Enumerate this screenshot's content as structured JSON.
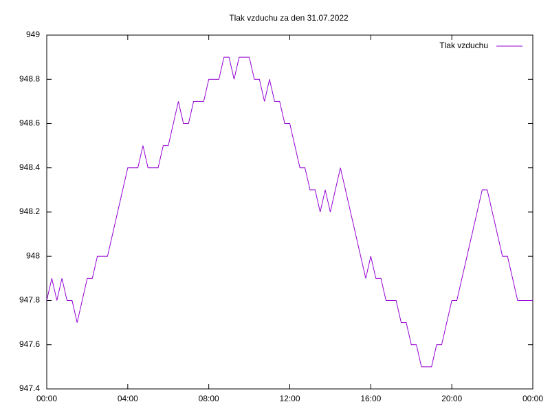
{
  "chart_data": {
    "type": "line",
    "title": "Tlak vzduchu za den 31.07.2022",
    "legend": "top-right",
    "xlim": [
      0,
      24
    ],
    "xticks": [
      {
        "value": 0,
        "label": "00:00"
      },
      {
        "value": 4,
        "label": "04:00"
      },
      {
        "value": 8,
        "label": "08:00"
      },
      {
        "value": 12,
        "label": "12:00"
      },
      {
        "value": 16,
        "label": "16:00"
      },
      {
        "value": 20,
        "label": "20:00"
      },
      {
        "value": 24,
        "label": "00:00"
      }
    ],
    "ylim": [
      947.4,
      949
    ],
    "yticks": [
      947.4,
      947.6,
      947.8,
      948,
      948.2,
      948.4,
      948.6,
      948.8,
      949
    ],
    "x": [
      0,
      0.25,
      0.5,
      0.75,
      1,
      1.25,
      1.5,
      1.75,
      2,
      2.25,
      2.5,
      2.75,
      3,
      3.25,
      3.5,
      3.75,
      4,
      4.25,
      4.5,
      4.75,
      5,
      5.25,
      5.5,
      5.75,
      6,
      6.25,
      6.5,
      6.75,
      7,
      7.25,
      7.5,
      7.75,
      8,
      8.25,
      8.5,
      8.75,
      9,
      9.25,
      9.5,
      9.75,
      10,
      10.25,
      10.5,
      10.75,
      11,
      11.25,
      11.5,
      11.75,
      12,
      12.25,
      12.5,
      12.75,
      13,
      13.25,
      13.5,
      13.75,
      14,
      14.25,
      14.5,
      14.75,
      15,
      15.25,
      15.5,
      15.75,
      16,
      16.25,
      16.5,
      16.75,
      17,
      17.25,
      17.5,
      17.75,
      18,
      18.25,
      18.5,
      18.75,
      19,
      19.25,
      19.5,
      19.75,
      20,
      20.25,
      20.5,
      20.75,
      21,
      21.25,
      21.5,
      21.75,
      22,
      22.25,
      22.5,
      22.75,
      23,
      23.25,
      23.5,
      23.75,
      24
    ],
    "series": [
      {
        "name": "Tlak vzduchu",
        "color": "#9400d3",
        "values": [
          947.8,
          947.9,
          947.8,
          947.9,
          947.8,
          947.8,
          947.7,
          947.8,
          947.9,
          947.9,
          948.0,
          948.0,
          948.0,
          948.1,
          948.2,
          948.3,
          948.4,
          948.4,
          948.4,
          948.5,
          948.4,
          948.4,
          948.4,
          948.5,
          948.5,
          948.6,
          948.7,
          948.6,
          948.6,
          948.7,
          948.7,
          948.7,
          948.8,
          948.8,
          948.8,
          948.9,
          948.9,
          948.8,
          948.9,
          948.9,
          948.9,
          948.8,
          948.8,
          948.7,
          948.8,
          948.7,
          948.7,
          948.6,
          948.6,
          948.5,
          948.4,
          948.4,
          948.3,
          948.3,
          948.2,
          948.3,
          948.2,
          948.3,
          948.4,
          948.3,
          948.2,
          948.1,
          948.0,
          947.9,
          948.0,
          947.9,
          947.9,
          947.8,
          947.8,
          947.8,
          947.7,
          947.7,
          947.6,
          947.6,
          947.5,
          947.5,
          947.5,
          947.6,
          947.6,
          947.7,
          947.8,
          947.8,
          947.9,
          948.0,
          948.1,
          948.2,
          948.3,
          948.3,
          948.2,
          948.1,
          948.0,
          948.0,
          947.9,
          947.8,
          947.8,
          947.8,
          947.8
        ]
      }
    ]
  }
}
